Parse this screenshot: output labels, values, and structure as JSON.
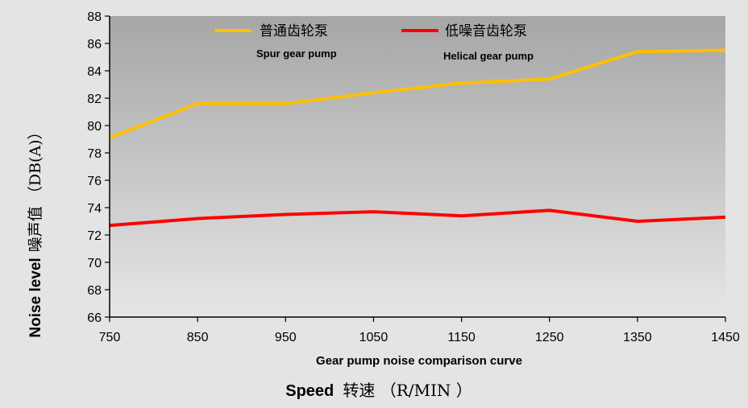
{
  "chart_data": {
    "type": "line",
    "x": [
      750,
      850,
      950,
      1050,
      1150,
      1250,
      1350,
      1450
    ],
    "series": [
      {
        "name": "普通齿轮泵",
        "name_en": "Spur gear pump",
        "color": "#ffc000",
        "values": [
          79.1,
          81.6,
          81.6,
          82.4,
          83.1,
          83.4,
          85.4,
          85.5
        ]
      },
      {
        "name": "低噪音齿轮泵",
        "name_en": "Helical gear pump",
        "color": "#ff0000",
        "values": [
          72.7,
          73.2,
          73.5,
          73.7,
          73.4,
          73.8,
          73.0,
          73.3
        ]
      }
    ],
    "xlim": [
      750,
      1450
    ],
    "ylim": [
      66,
      88
    ],
    "x_ticks": [
      750,
      850,
      950,
      1050,
      1150,
      1250,
      1350,
      1450
    ],
    "y_ticks": [
      66,
      68,
      70,
      72,
      74,
      76,
      78,
      80,
      82,
      84,
      86,
      88
    ],
    "grid": false,
    "legend_position": "top",
    "subtitle": "Gear pump noise comparison curve",
    "xlabel_en": "Speed",
    "xlabel_cn": "转速 （R/MIN ）",
    "ylabel_en": "Noise level",
    "ylabel_cn": "噪声值 （DB(A)）"
  }
}
